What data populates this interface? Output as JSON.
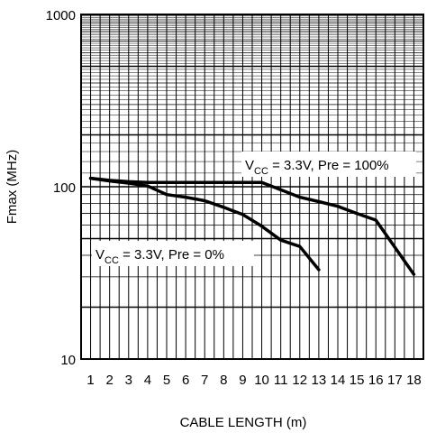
{
  "chart_data": {
    "type": "line",
    "x_scale": "linear",
    "y_scale": "log",
    "xlabel": "CABLE LENGTH (m)",
    "ylabel": "Fmax (MHz)",
    "xlim": [
      1,
      18
    ],
    "ylim": [
      10,
      1000
    ],
    "x_ticks": [
      "1",
      "2",
      "3",
      "4",
      "5",
      "6",
      "7",
      "8",
      "9",
      "10",
      "11",
      "12",
      "13",
      "14",
      "15",
      "16",
      "17",
      "18"
    ],
    "y_ticks": [
      {
        "value": 10,
        "label": "10"
      },
      {
        "value": 100,
        "label": "100"
      },
      {
        "value": 1000,
        "label": "1000"
      }
    ],
    "grid": true,
    "series": [
      {
        "annotation": {
          "v": "V",
          "sub": "CC",
          "rest": " = 3.3V, Pre = 100%"
        },
        "color": "#000000",
        "points": [
          [
            1,
            112
          ],
          [
            2,
            109
          ],
          [
            3,
            107
          ],
          [
            4,
            106
          ],
          [
            5,
            106
          ],
          [
            6,
            106
          ],
          [
            7,
            106
          ],
          [
            8,
            106
          ],
          [
            9,
            106
          ],
          [
            10,
            106
          ],
          [
            11,
            96
          ],
          [
            12,
            87
          ],
          [
            13,
            82
          ],
          [
            14,
            77
          ],
          [
            15,
            70
          ],
          [
            16,
            64
          ],
          [
            18,
            31
          ]
        ]
      },
      {
        "annotation": {
          "v": "V",
          "sub": "CC",
          "rest": " = 3.3V, Pre = 0%"
        },
        "color": "#000000",
        "points": [
          [
            1,
            112
          ],
          [
            2,
            108
          ],
          [
            3,
            105
          ],
          [
            4,
            101
          ],
          [
            5,
            90
          ],
          [
            6,
            87
          ],
          [
            7,
            83
          ],
          [
            8,
            76
          ],
          [
            9,
            69
          ],
          [
            10,
            59
          ],
          [
            11,
            49
          ],
          [
            12,
            45
          ],
          [
            13,
            33
          ]
        ]
      }
    ]
  }
}
